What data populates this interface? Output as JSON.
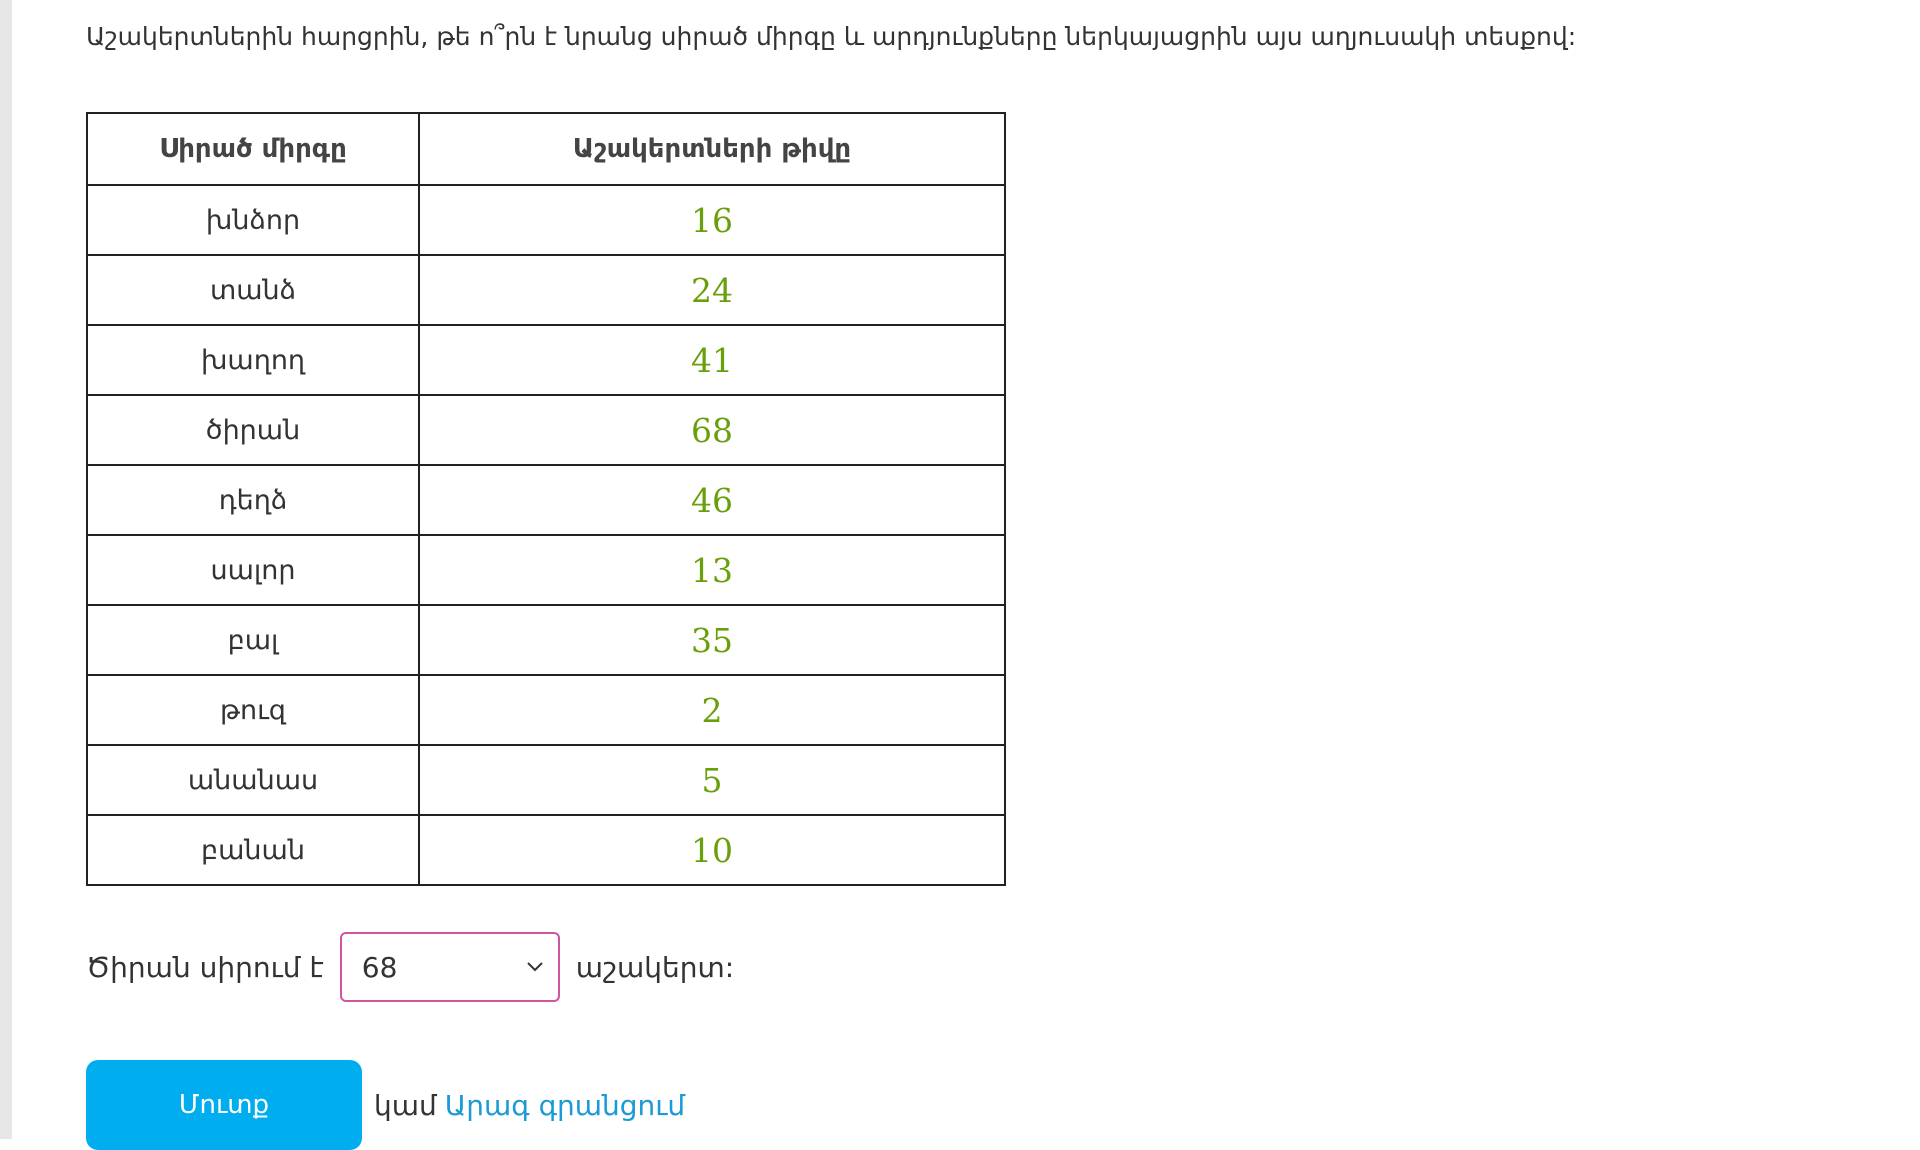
{
  "question": "Աշակերտներին հարցրին, թե ո՞րն է նրանց սիրած միրգը և արդյունքները ներկայացրին այս աղյուսակի տեսքով:",
  "table": {
    "header": [
      "Սիրած միրգը",
      "Աշակերտների թիվը"
    ],
    "rows": [
      [
        "խնձոր",
        16
      ],
      [
        "տանձ",
        24
      ],
      [
        "խաղող",
        41
      ],
      [
        "ծիրան",
        68
      ],
      [
        "դեղձ",
        46
      ],
      [
        "սալոր",
        13
      ],
      [
        "բալ",
        35
      ],
      [
        "թուզ",
        2
      ],
      [
        "անանաս",
        5
      ],
      [
        "բանան",
        10
      ]
    ]
  },
  "answer": {
    "prefix": "Ծիրան սիրում է",
    "selected": 68,
    "suffix": "աշակերտ:"
  },
  "button": "Մուտք",
  "or": "կամ",
  "link": "Արագ գրանցում"
}
